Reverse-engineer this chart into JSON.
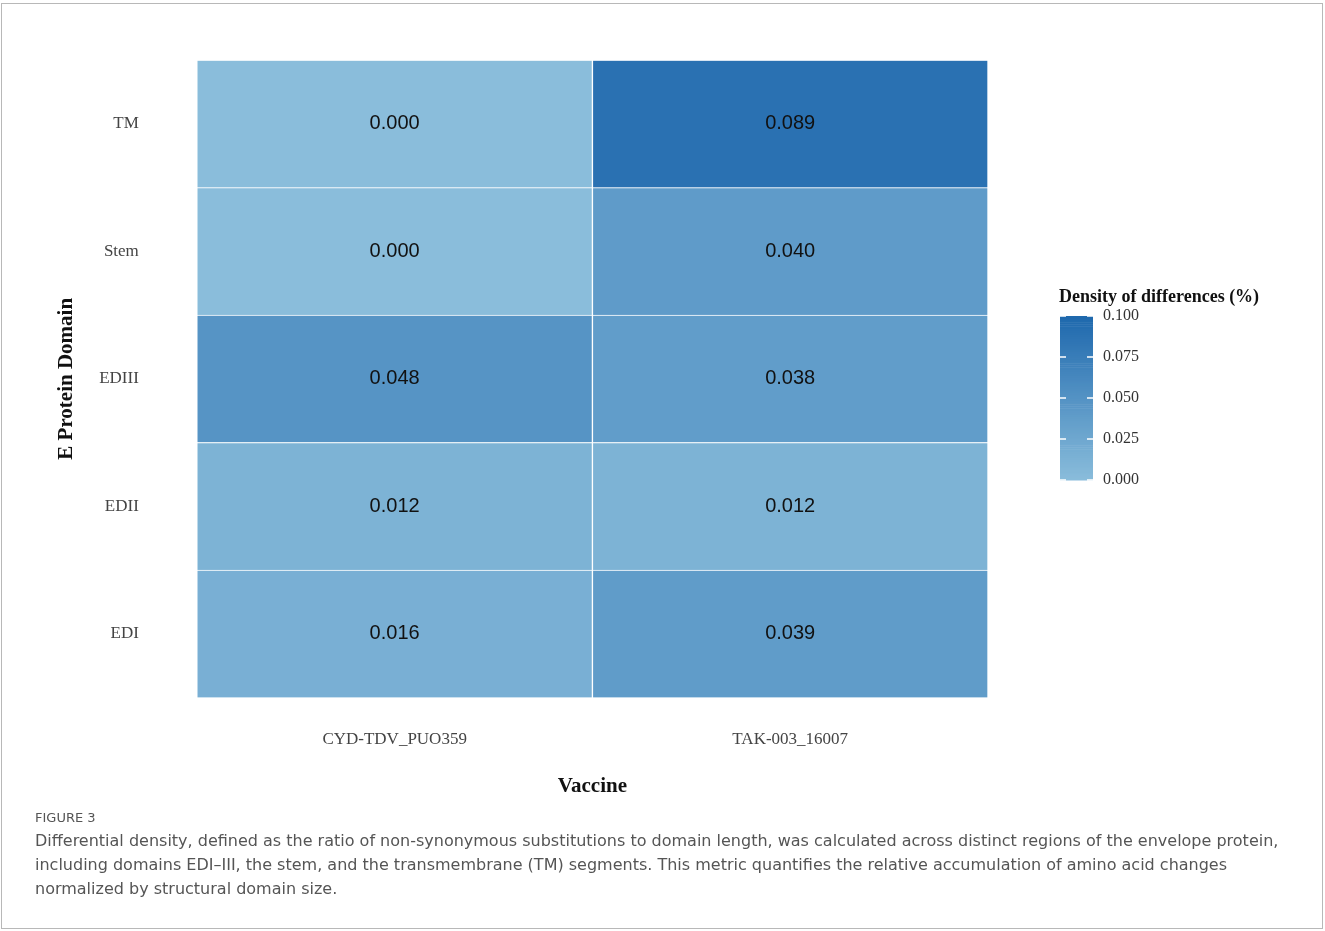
{
  "chart_data": {
    "type": "heatmap",
    "xlabel": "Vaccine",
    "ylabel": "E Protein Domain",
    "clabel": "Density of differences (%)",
    "categories": [
      "CYD-TDV_PUO359",
      "TAK-003_16007"
    ],
    "y_categories": [
      "TM",
      "Stem",
      "EDIII",
      "EDII",
      "EDI"
    ],
    "cells": [
      [
        0.0,
        0.089
      ],
      [
        0.0,
        0.04
      ],
      [
        0.048,
        0.038
      ],
      [
        0.012,
        0.012
      ],
      [
        0.016,
        0.039
      ]
    ],
    "cell_labels": [
      [
        "0.000",
        "0.089"
      ],
      [
        "0.000",
        "0.040"
      ],
      [
        "0.048",
        "0.038"
      ],
      [
        "0.012",
        "0.012"
      ],
      [
        "0.016",
        "0.039"
      ]
    ],
    "clim": [
      0,
      0.1
    ],
    "cticks": [
      {
        "value": 0,
        "label": "0.000"
      },
      {
        "value": 0.025,
        "label": "0.025"
      },
      {
        "value": 0.05,
        "label": "0.050"
      },
      {
        "value": 0.075,
        "label": "0.075"
      },
      {
        "value": 0.1,
        "label": "0.100"
      }
    ],
    "annotations": [
      "FIGURE 3",
      "Differential density, defined as the ratio of non-synonymous substitutions to domain length, was calculated across distinct regions of the envelope protein, including domains EDI–III, the stem, and the transmembrane (TM) segments. This metric quantifies the relative accumulation of amino acid changes normalized by structural domain size."
    ]
  }
}
